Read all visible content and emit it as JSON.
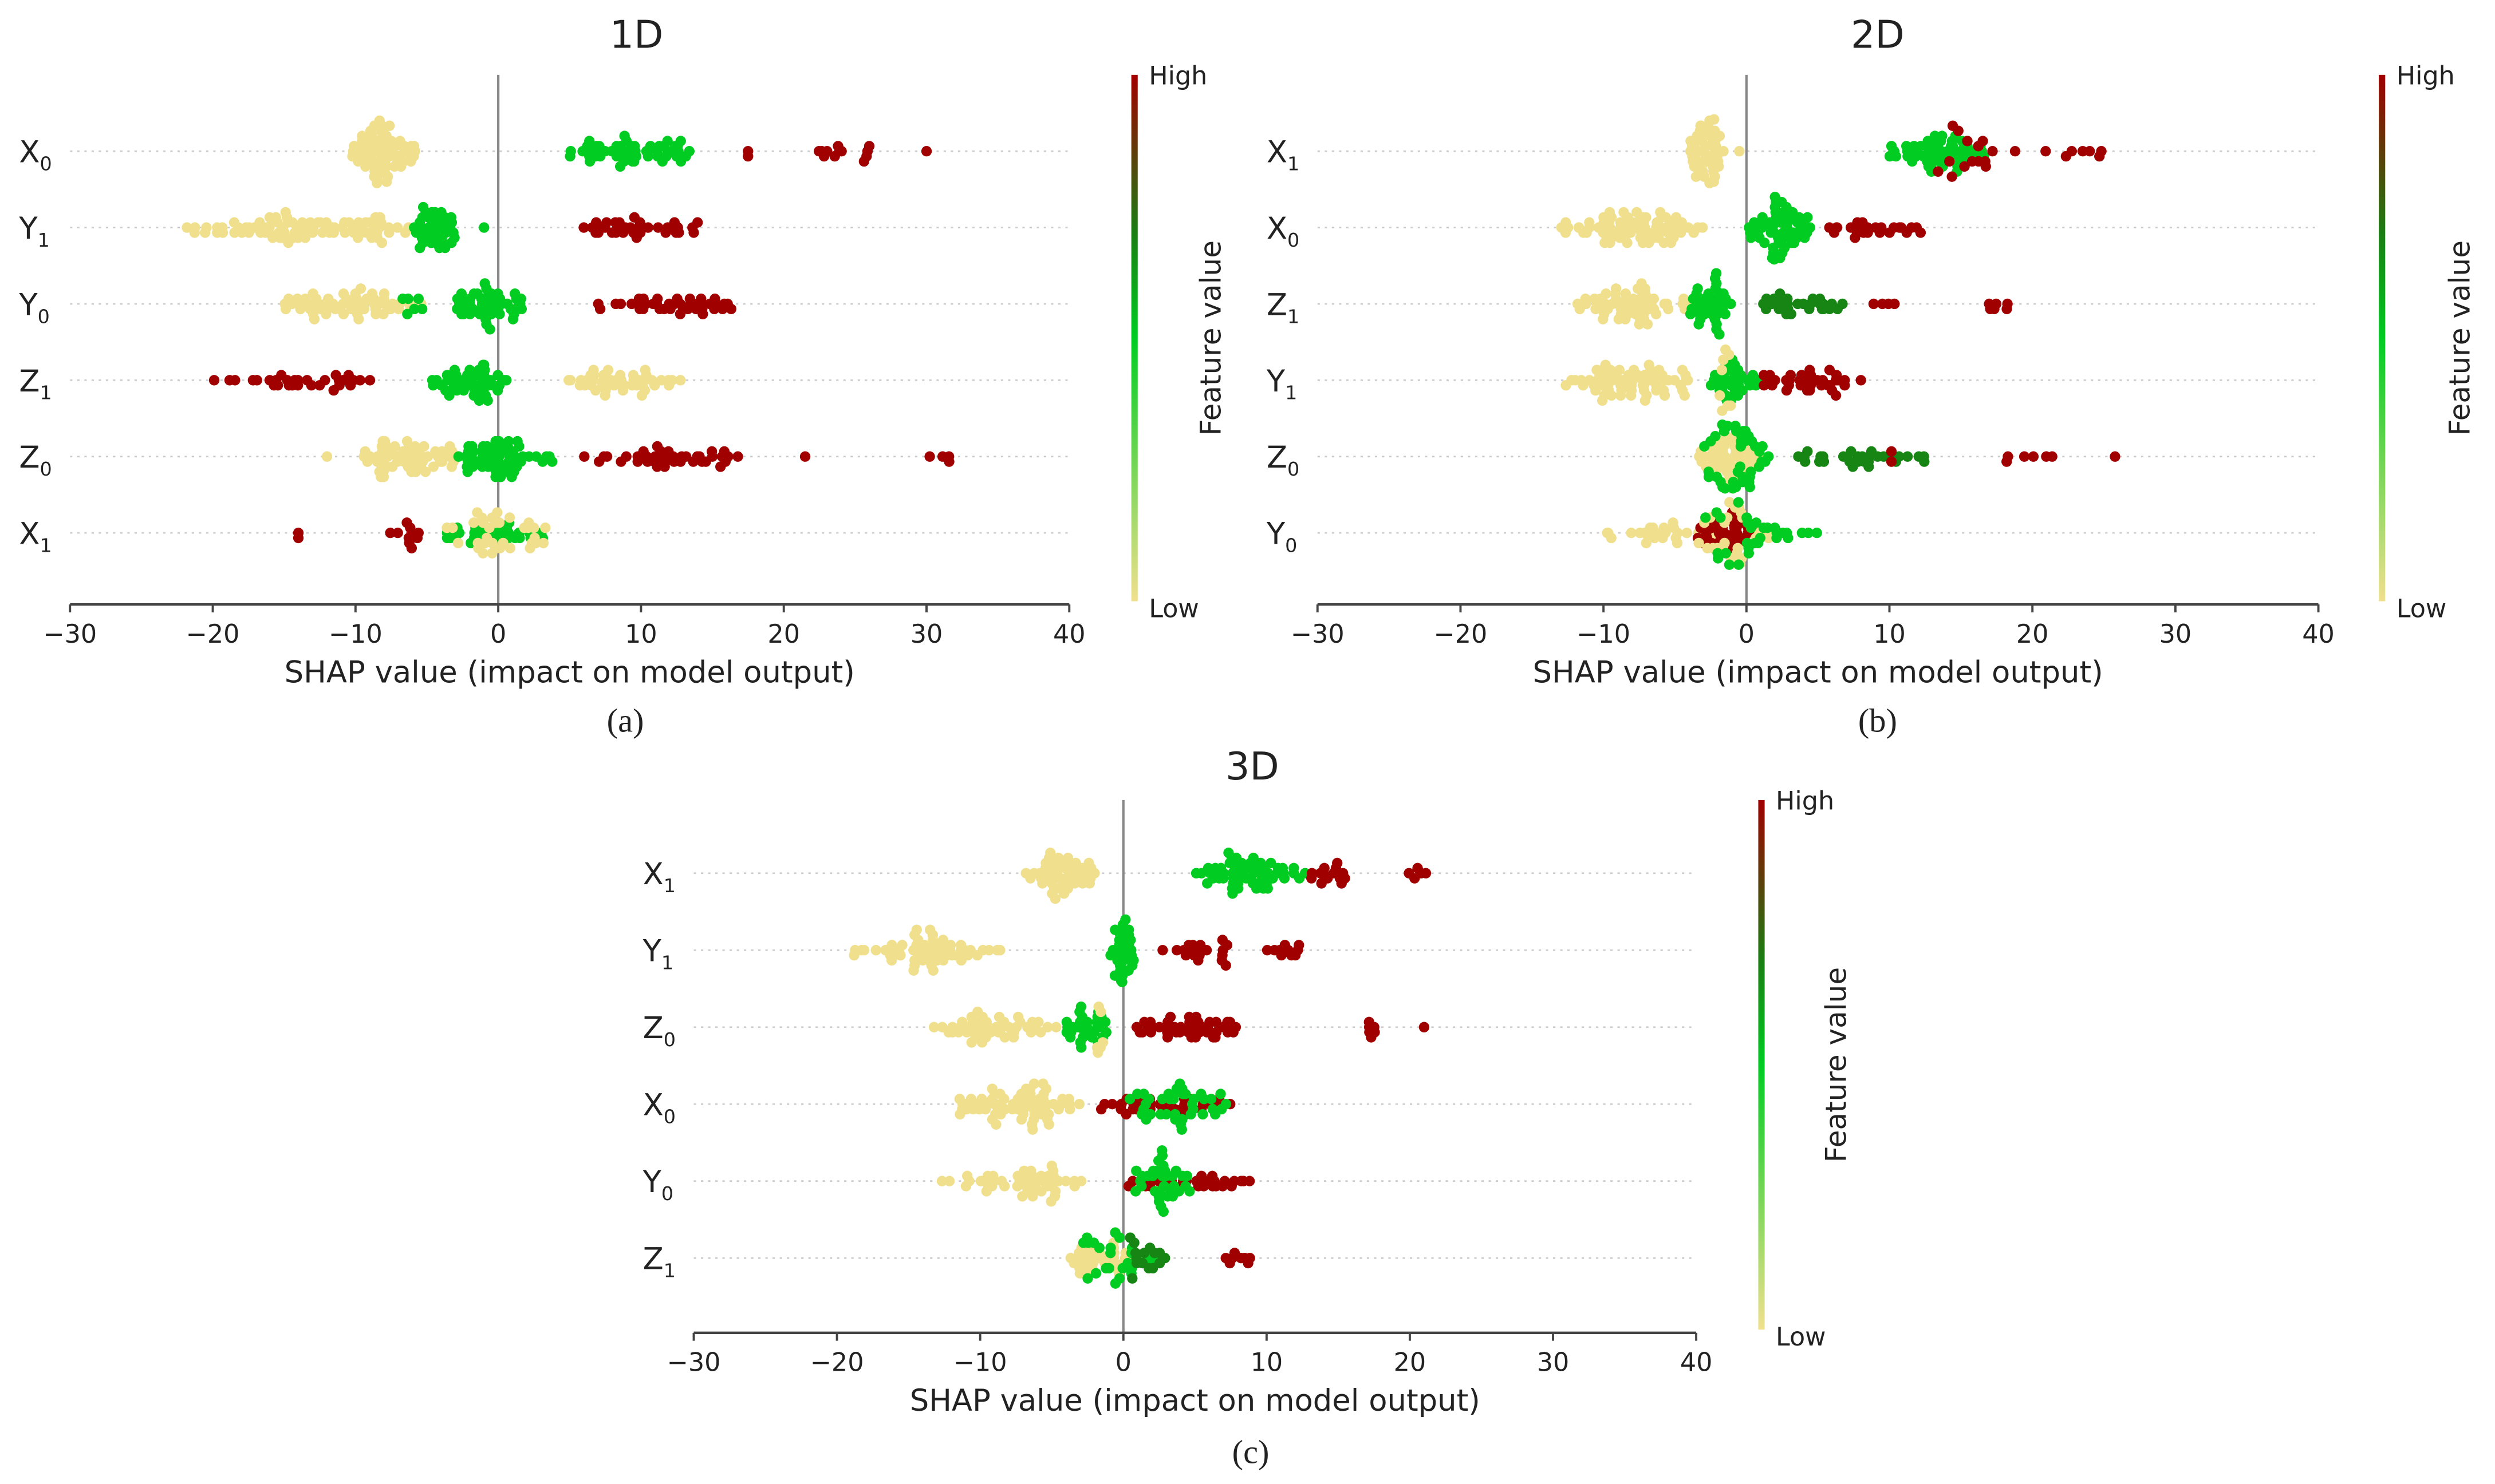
{
  "chart_data": [
    {
      "type": "scatter",
      "subtype": "shap-beeswarm",
      "title": "1D",
      "panel_label": "(a)",
      "xlabel": "SHAP value (impact on model output)",
      "xlim": [
        -30,
        40
      ],
      "xticks": [
        "−30",
        "−20",
        "−10",
        "0",
        "10",
        "20",
        "30",
        "40"
      ],
      "xtick_values": [
        -30,
        -20,
        -10,
        0,
        10,
        20,
        30,
        40
      ],
      "colorbar": {
        "label": "Feature value",
        "high": "High",
        "low": "Low"
      },
      "cluster_format": [
        "shap_min",
        "shap_max",
        "count",
        "feature_value_0to1"
      ],
      "features": [
        {
          "name": "X",
          "sub": "0",
          "clusters": [
            [
              -11,
              -5.5,
              70,
              0
            ],
            [
              5,
              13.5,
              55,
              0.5
            ],
            [
              17.5,
              17.5,
              2,
              1
            ],
            [
              21.5,
              26.5,
              12,
              1
            ],
            [
              30,
              30,
              1,
              1
            ]
          ]
        },
        {
          "name": "Y",
          "sub": "1",
          "clusters": [
            [
              -22,
              -5.5,
              90,
              0
            ],
            [
              -6,
              -3,
              40,
              0.5
            ],
            [
              -1,
              -1,
              1,
              0.5
            ],
            [
              5.5,
              14,
              35,
              1
            ]
          ]
        },
        {
          "name": "Y",
          "sub": "0",
          "clusters": [
            [
              -15,
              -5,
              60,
              0
            ],
            [
              -7,
              -5,
              6,
              0.5
            ],
            [
              -3,
              2,
              50,
              0.5
            ],
            [
              7,
              17,
              40,
              1
            ]
          ]
        },
        {
          "name": "Z",
          "sub": "1",
          "clusters": [
            [
              -20.5,
              -7,
              30,
              1
            ],
            [
              -5.5,
              1,
              50,
              0.5
            ],
            [
              4,
              13,
              45,
              0
            ]
          ]
        },
        {
          "name": "Z",
          "sub": "0",
          "clusters": [
            [
              -12,
              -12,
              1,
              0
            ],
            [
              -9.5,
              -3,
              60,
              0
            ],
            [
              -3,
              2,
              55,
              0.5
            ],
            [
              2,
              4,
              6,
              0.5
            ],
            [
              6,
              17,
              40,
              1
            ],
            [
              21.5,
              21.5,
              1,
              1
            ],
            [
              30,
              33,
              4,
              1
            ]
          ]
        },
        {
          "name": "X",
          "sub": "1",
          "clusters": [
            [
              -14,
              -14,
              2,
              1
            ],
            [
              -8,
              -5,
              10,
              1
            ],
            [
              -5,
              3.5,
              35,
              0.5
            ],
            [
              -4,
              4,
              35,
              0
            ]
          ]
        }
      ]
    },
    {
      "type": "scatter",
      "subtype": "shap-beeswarm",
      "title": "2D",
      "panel_label": "(b)",
      "xlabel": "SHAP value (impact on model output)",
      "xlim": [
        -30,
        40
      ],
      "xticks": [
        "−30",
        "−20",
        "−10",
        "0",
        "10",
        "20",
        "30",
        "40"
      ],
      "xtick_values": [
        -30,
        -20,
        -10,
        0,
        10,
        20,
        30,
        40
      ],
      "colorbar": {
        "label": "Feature value",
        "high": "High",
        "low": "Low"
      },
      "cluster_format": [
        "shap_min",
        "shap_max",
        "count",
        "feature_value_0to1"
      ],
      "features": [
        {
          "name": "X",
          "sub": "1",
          "clusters": [
            [
              -4,
              -1.5,
              50,
              0
            ],
            [
              -0.5,
              -0.5,
              1,
              0
            ],
            [
              10,
              17,
              60,
              0.5
            ],
            [
              13,
              19,
              15,
              1
            ],
            [
              20,
              26,
              7,
              1
            ]
          ]
        },
        {
          "name": "X",
          "sub": "0",
          "clusters": [
            [
              -13,
              -3,
              80,
              0
            ],
            [
              0,
              5,
              60,
              0.5
            ],
            [
              5,
              12.5,
              25,
              1
            ]
          ]
        },
        {
          "name": "Z",
          "sub": "1",
          "clusters": [
            [
              -12,
              -4,
              60,
              0
            ],
            [
              -4,
              -1,
              40,
              0.5
            ],
            [
              1,
              7,
              30,
              0.68
            ],
            [
              8.5,
              11,
              4,
              1
            ],
            [
              16,
              18.5,
              6,
              1
            ]
          ]
        },
        {
          "name": "Y",
          "sub": "1",
          "clusters": [
            [
              -13,
              -3,
              70,
              0
            ],
            [
              -3,
              1,
              35,
              0.5
            ],
            [
              -2,
              0,
              8,
              0
            ],
            [
              1,
              7,
              35,
              1
            ],
            [
              8,
              8,
              1,
              1
            ]
          ]
        },
        {
          "name": "Z",
          "sub": "0",
          "clusters": [
            [
              -4,
              1,
              50,
              0
            ],
            [
              -3,
              2,
              40,
              0.5
            ],
            [
              3,
              13,
              30,
              0.68
            ],
            [
              10,
              11,
              2,
              1
            ],
            [
              16,
              27,
              7,
              1
            ]
          ]
        },
        {
          "name": "Y",
          "sub": "0",
          "clusters": [
            [
              -10,
              -2,
              25,
              0
            ],
            [
              -4,
              1,
              35,
              1
            ],
            [
              -4,
              2,
              25,
              0
            ],
            [
              -3,
              5.5,
              30,
              0.5
            ]
          ]
        }
      ]
    },
    {
      "type": "scatter",
      "subtype": "shap-beeswarm",
      "title": "3D",
      "panel_label": "(c)",
      "xlabel": "SHAP value (impact on model output)",
      "xlim": [
        -30,
        40
      ],
      "xticks": [
        "−30",
        "−20",
        "−10",
        "0",
        "10",
        "20",
        "30",
        "40"
      ],
      "xtick_values": [
        -30,
        -20,
        -10,
        0,
        10,
        20,
        30,
        40
      ],
      "colorbar": {
        "label": "Feature value",
        "high": "High",
        "low": "Low"
      },
      "cluster_format": [
        "shap_min",
        "shap_max",
        "count",
        "feature_value_0to1"
      ],
      "features": [
        {
          "name": "X",
          "sub": "1",
          "clusters": [
            [
              -7,
              -2,
              50,
              0
            ],
            [
              5,
              13,
              60,
              0.5
            ],
            [
              12,
              16,
              15,
              1
            ],
            [
              18.5,
              21.5,
              5,
              1
            ]
          ]
        },
        {
          "name": "Y",
          "sub": "1",
          "clusters": [
            [
              -19,
              -8.5,
              60,
              0
            ],
            [
              -1,
              1,
              35,
              0.5
            ],
            [
              2.5,
              8,
              20,
              1
            ],
            [
              10,
              12.5,
              10,
              1
            ]
          ]
        },
        {
          "name": "Z",
          "sub": "0",
          "clusters": [
            [
              -13.5,
              -4,
              50,
              0
            ],
            [
              -4,
              -1,
              30,
              0.5
            ],
            [
              -2,
              -1,
              6,
              0
            ],
            [
              0.5,
              9,
              45,
              1
            ],
            [
              17,
              18,
              6,
              1
            ],
            [
              21,
              21,
              1,
              1
            ]
          ]
        },
        {
          "name": "X",
          "sub": "0",
          "clusters": [
            [
              -12,
              -3,
              70,
              0
            ],
            [
              -2,
              8,
              35,
              1
            ],
            [
              0,
              7.5,
              40,
              0.5
            ]
          ]
        },
        {
          "name": "Y",
          "sub": "0",
          "clusters": [
            [
              -13,
              -2,
              50,
              0
            ],
            [
              -1,
              9.5,
              30,
              1
            ],
            [
              0,
              5,
              35,
              0.5
            ]
          ]
        },
        {
          "name": "Z",
          "sub": "1",
          "clusters": [
            [
              -4,
              1,
              35,
              0
            ],
            [
              -3,
              3,
              25,
              0.5
            ],
            [
              0,
              3,
              15,
              0.68
            ],
            [
              7,
              9,
              8,
              1
            ]
          ]
        }
      ]
    }
  ],
  "colors": {
    "low": "#f0e08e",
    "mid": "#00cc22",
    "dark_mid": "#1a7d12",
    "high": "#a00000"
  }
}
